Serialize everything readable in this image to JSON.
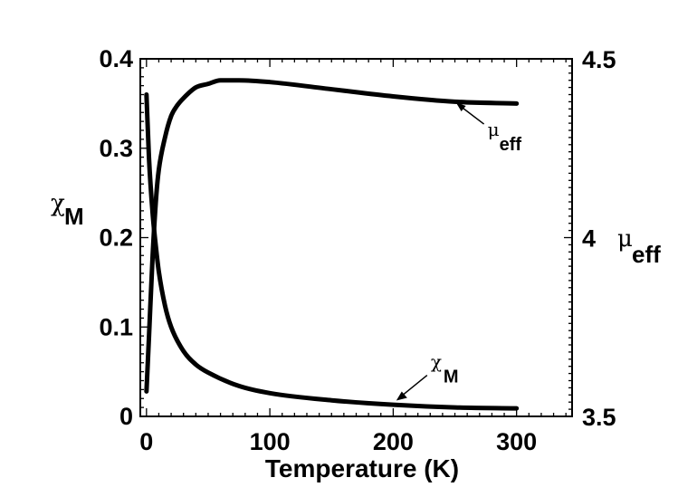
{
  "chart_data": {
    "type": "line",
    "x": {
      "label": "Temperature (K)",
      "lim": [
        -5,
        345
      ],
      "ticks": [
        0,
        100,
        200,
        300
      ],
      "tick_labels": [
        "0",
        "100",
        "200",
        "300"
      ]
    },
    "y_left": {
      "label_symbol": "χ",
      "label_sub": "M",
      "lim": [
        0,
        0.4
      ],
      "ticks": [
        0,
        0.1,
        0.2,
        0.3,
        0.4
      ],
      "tick_labels": [
        "0",
        "0.1",
        "0.2",
        "0.3",
        "0.4"
      ]
    },
    "y_right": {
      "label_symbol": "μ",
      "label_sub": "eff",
      "lim": [
        3.5,
        4.5
      ],
      "ticks": [
        3.5,
        4,
        4.5
      ],
      "tick_labels": [
        "3.5",
        "4",
        "4.5"
      ]
    },
    "series": [
      {
        "axis": "left",
        "x": [
          0,
          2,
          5,
          8,
          10,
          15,
          20,
          30,
          40,
          50,
          75,
          100,
          150,
          200,
          250,
          300
        ],
        "y": [
          0.36,
          0.29,
          0.227,
          0.185,
          0.162,
          0.124,
          0.1,
          0.073,
          0.058,
          0.049,
          0.034,
          0.026,
          0.018,
          0.013,
          0.01,
          0.009
        ]
      },
      {
        "axis": "right",
        "x": [
          0,
          2,
          5,
          8,
          10,
          15,
          20,
          25,
          30,
          40,
          50,
          60,
          75,
          100,
          150,
          200,
          250,
          300
        ],
        "y": [
          3.57,
          3.72,
          3.95,
          4.12,
          4.19,
          4.28,
          4.34,
          4.37,
          4.39,
          4.42,
          4.43,
          4.44,
          4.44,
          4.435,
          4.415,
          4.395,
          4.38,
          4.375
        ]
      }
    ],
    "annotations": [
      {
        "symbol": "μ",
        "sub": "eff",
        "x": 275,
        "y_right": 4.31
      },
      {
        "symbol": "χ",
        "sub": "M",
        "x": 226,
        "y_left": 0.042
      }
    ]
  }
}
